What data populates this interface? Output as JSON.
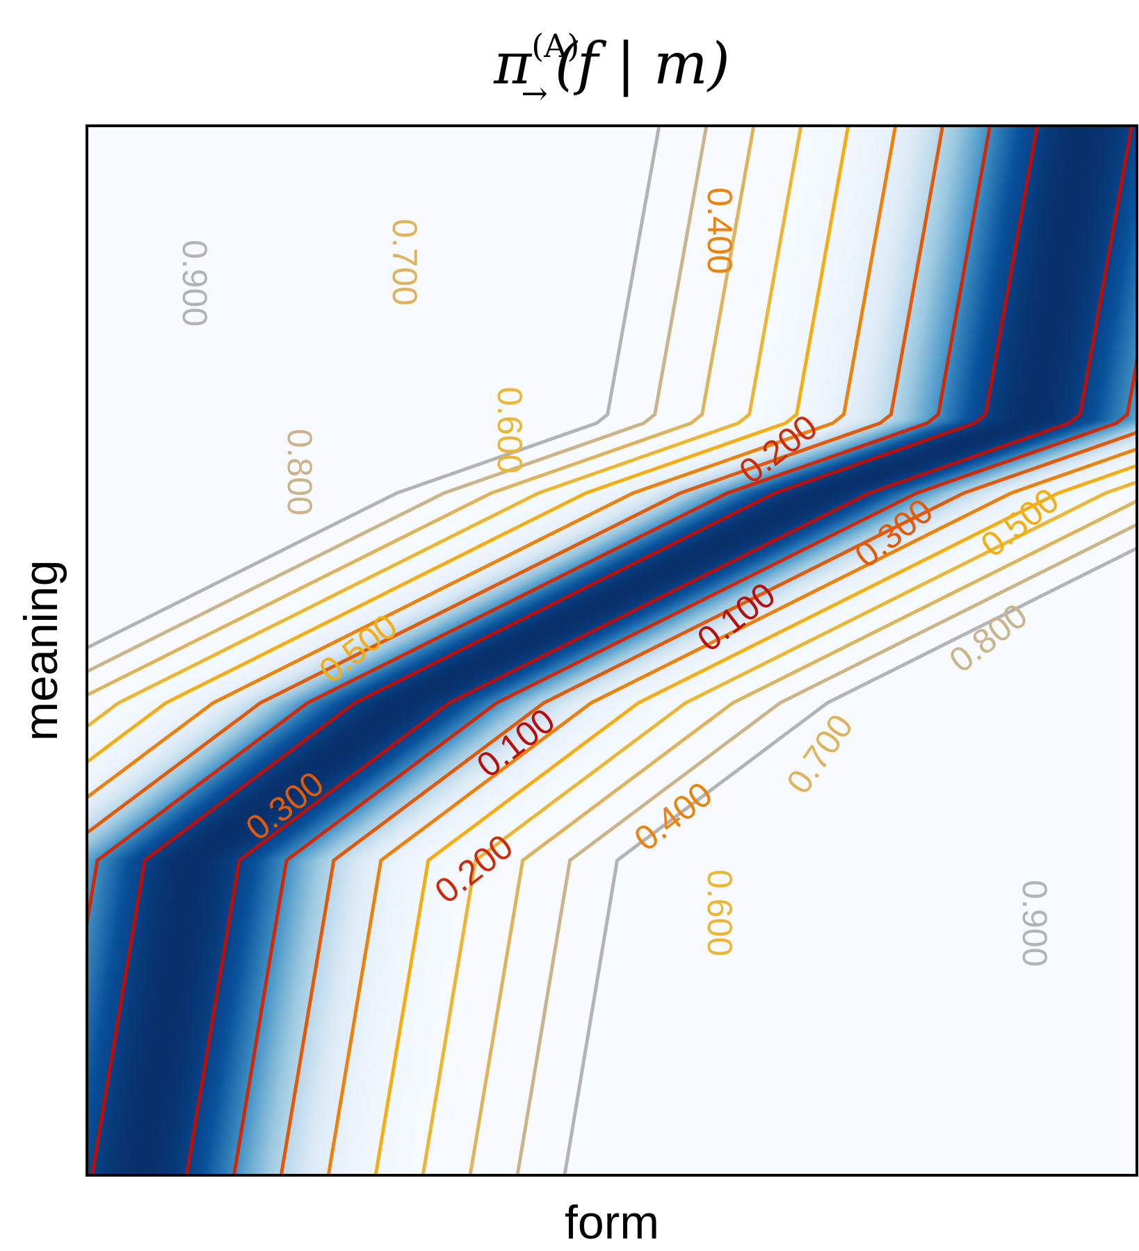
{
  "chart_data": {
    "type": "heatmap",
    "title": "π(A)→(f | m)",
    "title_parts": {
      "base": "π",
      "superscript": "(A)",
      "subscript": "→",
      "argument": "(f | m)"
    },
    "xlabel": "form",
    "ylabel": "meaning",
    "xlim": [
      0,
      1
    ],
    "ylim": [
      0,
      1
    ],
    "grid": false,
    "colormap": "Blues",
    "ridge": {
      "description_points": [
        [
          0.05,
          0.0
        ],
        [
          0.1,
          0.3
        ],
        [
          0.3,
          0.45
        ],
        [
          0.5,
          0.55
        ],
        [
          0.7,
          0.65
        ],
        [
          0.9,
          0.72
        ],
        [
          0.95,
          1.0
        ]
      ]
    },
    "contour_levels": [
      {
        "value": 0.1,
        "label": "0.100",
        "color": "#b80f0a"
      },
      {
        "value": 0.2,
        "label": "0.200",
        "color": "#cc2a08"
      },
      {
        "value": 0.3,
        "label": "0.300",
        "color": "#e05a0a"
      },
      {
        "value": 0.4,
        "label": "0.400",
        "color": "#ec820e"
      },
      {
        "value": 0.5,
        "label": "0.500",
        "color": "#f5ad14"
      },
      {
        "value": 0.6,
        "label": "0.600",
        "color": "#ecb634"
      },
      {
        "value": 0.7,
        "label": "0.700",
        "color": "#dfb25c"
      },
      {
        "value": 0.8,
        "label": "0.800",
        "color": "#cbb48a"
      },
      {
        "value": 0.9,
        "label": "0.900",
        "color": "#b3b3b3"
      }
    ],
    "contour_label_positions": [
      {
        "label": "0.900",
        "x": 0.1,
        "y": 0.85,
        "rotate": 90
      },
      {
        "label": "0.800",
        "x": 0.2,
        "y": 0.67,
        "rotate": 90
      },
      {
        "label": "0.700",
        "x": 0.3,
        "y": 0.87,
        "rotate": 90
      },
      {
        "label": "0.600",
        "x": 0.4,
        "y": 0.71,
        "rotate": 90
      },
      {
        "label": "0.400",
        "x": 0.6,
        "y": 0.9,
        "rotate": 90
      },
      {
        "label": "0.500",
        "x": 0.26,
        "y": 0.5,
        "rotate": -38
      },
      {
        "label": "0.300",
        "x": 0.19,
        "y": 0.35,
        "rotate": -38
      },
      {
        "label": "0.100",
        "x": 0.41,
        "y": 0.41,
        "rotate": -38
      },
      {
        "label": "0.200",
        "x": 0.66,
        "y": 0.69,
        "rotate": -38
      },
      {
        "label": "0.100",
        "x": 0.62,
        "y": 0.53,
        "rotate": -38
      },
      {
        "label": "0.300",
        "x": 0.77,
        "y": 0.61,
        "rotate": -38
      },
      {
        "label": "0.500",
        "x": 0.89,
        "y": 0.62,
        "rotate": -38
      },
      {
        "label": "0.200",
        "x": 0.37,
        "y": 0.29,
        "rotate": -38
      },
      {
        "label": "0.400",
        "x": 0.56,
        "y": 0.34,
        "rotate": -38
      },
      {
        "label": "0.700",
        "x": 0.7,
        "y": 0.4,
        "rotate": -55
      },
      {
        "label": "0.800",
        "x": 0.86,
        "y": 0.51,
        "rotate": -38
      },
      {
        "label": "0.600",
        "x": 0.6,
        "y": 0.25,
        "rotate": 90
      },
      {
        "label": "0.900",
        "x": 0.9,
        "y": 0.24,
        "rotate": 90
      }
    ]
  }
}
